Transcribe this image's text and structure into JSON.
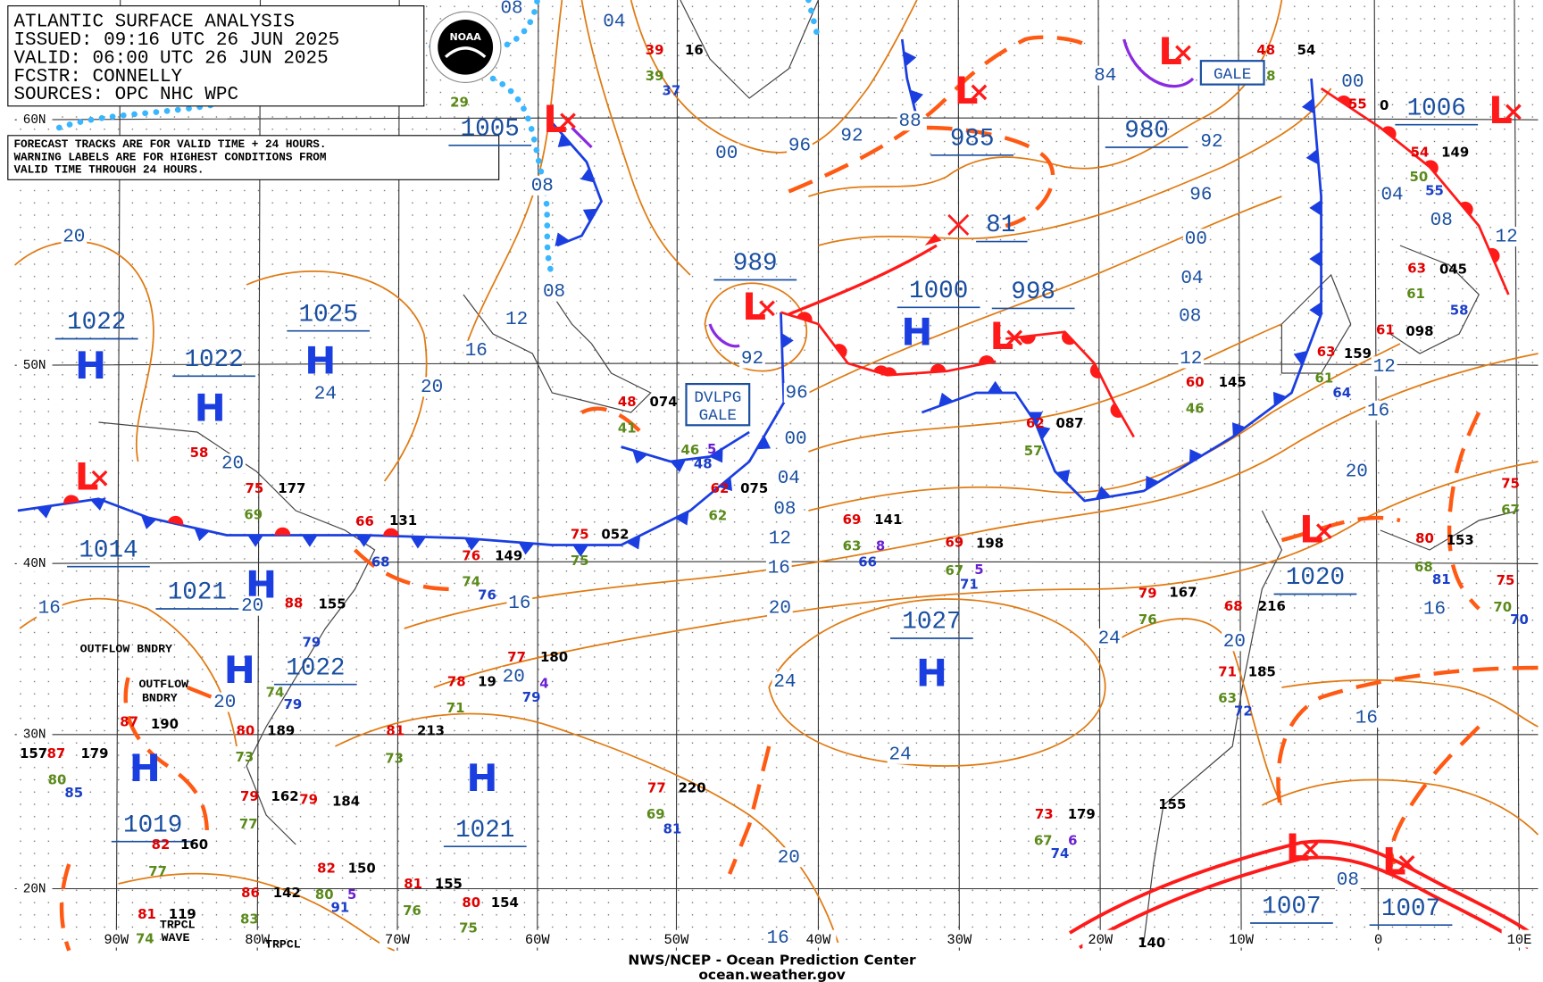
{
  "header": {
    "lines": [
      "ATLANTIC SURFACE ANALYSIS",
      "ISSUED: 09:16 UTC 26 JUN 2025",
      "VALID: 06:00 UTC 26 JUN 2025",
      "FCSTR: CONNELLY",
      "SOURCES: OPC NHC WPC"
    ],
    "logo": "NOAA"
  },
  "note": [
    "FORECAST TRACKS ARE FOR VALID TIME + 24 HOURS.",
    "WARNING LABELS ARE FOR HIGHEST CONDITIONS FROM",
    "VALID TIME THROUGH 24 HOURS."
  ],
  "latitude_labels": [
    "60N",
    "50N",
    "40N",
    "30N",
    "20N"
  ],
  "longitude_labels": [
    "90W",
    "80W",
    "70W",
    "60W",
    "50W",
    "40W",
    "30W",
    "20W",
    "10W",
    "0",
    "10E"
  ],
  "pressure_centers": [
    {
      "symbol": "H",
      "value": "1022"
    },
    {
      "symbol": "H",
      "value": "1022"
    },
    {
      "symbol": "H",
      "value": "1025"
    },
    {
      "symbol": "L",
      "value": "1014"
    },
    {
      "symbol": "H",
      "value": "1021"
    },
    {
      "symbol": "H",
      "value": "1022"
    },
    {
      "symbol": "H",
      "value": "1019"
    },
    {
      "symbol": "H",
      "value": "1021"
    },
    {
      "symbol": "H",
      "value": "1027"
    },
    {
      "symbol": "H",
      "value": "1000"
    },
    {
      "symbol": "L",
      "value": "998"
    },
    {
      "symbol": "L",
      "value": "989"
    },
    {
      "symbol": "L",
      "value": "985"
    },
    {
      "symbol": "L",
      "value": "980"
    },
    {
      "symbol": "L",
      "value": "1005"
    },
    {
      "symbol": "L",
      "value": "1006"
    },
    {
      "symbol": "L",
      "value": "1020"
    },
    {
      "symbol": "L",
      "value": "1007"
    },
    {
      "symbol": "L",
      "value": "1007"
    }
  ],
  "forecast_position": "81",
  "warnings": [
    [
      "GALE"
    ],
    [
      "DVLPG",
      "GALE"
    ]
  ],
  "isobar_labels": [
    "08",
    "04",
    "00",
    "96",
    "92",
    "88",
    "84",
    "92",
    "96",
    "00",
    "04",
    "08",
    "12",
    "16",
    "20",
    "16",
    "16",
    "08",
    "00",
    "04",
    "08",
    "12",
    "12",
    "08",
    "08",
    "12",
    "16",
    "20",
    "24",
    "20",
    "20",
    "16",
    "20",
    "20",
    "20",
    "16",
    "20",
    "24",
    "24",
    "24",
    "20",
    "20",
    "16",
    "16",
    "12",
    "08",
    "04",
    "00",
    "96",
    "92"
  ],
  "annotations": [
    "OUTFLOW BNDRY",
    "OUTFLOW",
    "BNDRY",
    "TRPCL",
    "WAVE",
    "TRPCL"
  ],
  "stations": [
    {
      "text": "39",
      "color": "#e00000"
    },
    {
      "text": "16",
      "color": "#000000"
    },
    {
      "text": "39",
      "color": "#5a8a1a"
    },
    {
      "text": "37",
      "color": "#1a3ec8"
    },
    {
      "text": "29",
      "color": "#5a8a1a"
    },
    {
      "text": "48",
      "color": "#e00000"
    },
    {
      "text": "54",
      "color": "#000000"
    },
    {
      "text": "8",
      "color": "#5a8a1a"
    },
    {
      "text": "55",
      "color": "#e00000"
    },
    {
      "text": "0",
      "color": "#000000"
    },
    {
      "text": "54",
      "color": "#e00000"
    },
    {
      "text": "149",
      "color": "#000000"
    },
    {
      "text": "50",
      "color": "#5a8a1a"
    },
    {
      "text": "55",
      "color": "#1a3ec8"
    },
    {
      "text": "63",
      "color": "#e00000"
    },
    {
      "text": "045",
      "color": "#000000"
    },
    {
      "text": "61",
      "color": "#5a8a1a"
    },
    {
      "text": "58",
      "color": "#1a3ec8"
    },
    {
      "text": "61",
      "color": "#e00000"
    },
    {
      "text": "098",
      "color": "#000000"
    },
    {
      "text": "63",
      "color": "#e00000"
    },
    {
      "text": "159",
      "color": "#000000"
    },
    {
      "text": "61",
      "color": "#5a8a1a"
    },
    {
      "text": "64",
      "color": "#1a3ec8"
    },
    {
      "text": "60",
      "color": "#e00000"
    },
    {
      "text": "145",
      "color": "#000000"
    },
    {
      "text": "46",
      "color": "#5a8a1a"
    },
    {
      "text": "62",
      "color": "#e00000"
    },
    {
      "text": "087",
      "color": "#000000"
    },
    {
      "text": "57",
      "color": "#5a8a1a"
    },
    {
      "text": "48",
      "color": "#e00000"
    },
    {
      "text": "074",
      "color": "#000000"
    },
    {
      "text": "41",
      "color": "#5a8a1a"
    },
    {
      "text": "46",
      "color": "#5a8a1a"
    },
    {
      "text": "5",
      "color": "#6a1fd0"
    },
    {
      "text": "48",
      "color": "#1a3ec8"
    },
    {
      "text": "62",
      "color": "#e00000"
    },
    {
      "text": "075",
      "color": "#000000"
    },
    {
      "text": "62",
      "color": "#5a8a1a"
    },
    {
      "text": "69",
      "color": "#e00000"
    },
    {
      "text": "141",
      "color": "#000000"
    },
    {
      "text": "63",
      "color": "#5a8a1a"
    },
    {
      "text": "66",
      "color": "#1a3ec8"
    },
    {
      "text": "8",
      "color": "#6a1fd0"
    },
    {
      "text": "69",
      "color": "#e00000"
    },
    {
      "text": "198",
      "color": "#000000"
    },
    {
      "text": "67",
      "color": "#5a8a1a"
    },
    {
      "text": "71",
      "color": "#1a3ec8"
    },
    {
      "text": "5",
      "color": "#6a1fd0"
    },
    {
      "text": "79",
      "color": "#e00000"
    },
    {
      "text": "167",
      "color": "#000000"
    },
    {
      "text": "76",
      "color": "#5a8a1a"
    },
    {
      "text": "68",
      "color": "#e00000"
    },
    {
      "text": "216",
      "color": "#000000"
    },
    {
      "text": "71",
      "color": "#e00000"
    },
    {
      "text": "185",
      "color": "#000000"
    },
    {
      "text": "63",
      "color": "#5a8a1a"
    },
    {
      "text": "72",
      "color": "#1a3ec8"
    },
    {
      "text": "80",
      "color": "#e00000"
    },
    {
      "text": "153",
      "color": "#000000"
    },
    {
      "text": "68",
      "color": "#5a8a1a"
    },
    {
      "text": "81",
      "color": "#1a3ec8"
    },
    {
      "text": "75",
      "color": "#e00000"
    },
    {
      "text": "67",
      "color": "#5a8a1a"
    },
    {
      "text": "75",
      "color": "#e00000"
    },
    {
      "text": "70",
      "color": "#5a8a1a"
    },
    {
      "text": "70",
      "color": "#1a3ec8"
    },
    {
      "text": "75",
      "color": "#e00000"
    },
    {
      "text": "052",
      "color": "#000000"
    },
    {
      "text": "75",
      "color": "#5a8a1a"
    },
    {
      "text": "76",
      "color": "#e00000"
    },
    {
      "text": "149",
      "color": "#000000"
    },
    {
      "text": "74",
      "color": "#5a8a1a"
    },
    {
      "text": "76",
      "color": "#1a3ec8"
    },
    {
      "text": "66",
      "color": "#e00000"
    },
    {
      "text": "131",
      "color": "#000000"
    },
    {
      "text": "68",
      "color": "#1a3ec8"
    },
    {
      "text": "75",
      "color": "#e00000"
    },
    {
      "text": "177",
      "color": "#000000"
    },
    {
      "text": "69",
      "color": "#5a8a1a"
    },
    {
      "text": "58",
      "color": "#e00000"
    },
    {
      "text": "88",
      "color": "#e00000"
    },
    {
      "text": "155",
      "color": "#000000"
    },
    {
      "text": "79",
      "color": "#1a3ec8"
    },
    {
      "text": "77",
      "color": "#e00000"
    },
    {
      "text": "180",
      "color": "#000000"
    },
    {
      "text": "79",
      "color": "#1a3ec8"
    },
    {
      "text": "4",
      "color": "#6a1fd0"
    },
    {
      "text": "78",
      "color": "#e00000"
    },
    {
      "text": "19",
      "color": "#000000"
    },
    {
      "text": "71",
      "color": "#5a8a1a"
    },
    {
      "text": "81",
      "color": "#e00000"
    },
    {
      "text": "213",
      "color": "#000000"
    },
    {
      "text": "73",
      "color": "#5a8a1a"
    },
    {
      "text": "87",
      "color": "#e00000"
    },
    {
      "text": "190",
      "color": "#000000"
    },
    {
      "text": "87",
      "color": "#e00000"
    },
    {
      "text": "179",
      "color": "#000000"
    },
    {
      "text": "157",
      "color": "#000000"
    },
    {
      "text": "80",
      "color": "#5a8a1a"
    },
    {
      "text": "85",
      "color": "#1a3ec8"
    },
    {
      "text": "80",
      "color": "#e00000"
    },
    {
      "text": "189",
      "color": "#000000"
    },
    {
      "text": "73",
      "color": "#5a8a1a"
    },
    {
      "text": "74",
      "color": "#5a8a1a"
    },
    {
      "text": "79",
      "color": "#1a3ec8"
    },
    {
      "text": "79",
      "color": "#e00000"
    },
    {
      "text": "162",
      "color": "#000000"
    },
    {
      "text": "79",
      "color": "#e00000"
    },
    {
      "text": "184",
      "color": "#000000"
    },
    {
      "text": "77",
      "color": "#5a8a1a"
    },
    {
      "text": "77",
      "color": "#e00000"
    },
    {
      "text": "220",
      "color": "#000000"
    },
    {
      "text": "69",
      "color": "#5a8a1a"
    },
    {
      "text": "81",
      "color": "#1a3ec8"
    },
    {
      "text": "73",
      "color": "#e00000"
    },
    {
      "text": "179",
      "color": "#000000"
    },
    {
      "text": "67",
      "color": "#5a8a1a"
    },
    {
      "text": "74",
      "color": "#1a3ec8"
    },
    {
      "text": "6",
      "color": "#6a1fd0"
    },
    {
      "text": "155",
      "color": "#000000"
    },
    {
      "text": "82",
      "color": "#e00000"
    },
    {
      "text": "160",
      "color": "#000000"
    },
    {
      "text": "77",
      "color": "#5a8a1a"
    },
    {
      "text": "82",
      "color": "#e00000"
    },
    {
      "text": "150",
      "color": "#000000"
    },
    {
      "text": "80",
      "color": "#5a8a1a"
    },
    {
      "text": "91",
      "color": "#1a3ec8"
    },
    {
      "text": "5",
      "color": "#6a1fd0"
    },
    {
      "text": "86",
      "color": "#e00000"
    },
    {
      "text": "142",
      "color": "#000000"
    },
    {
      "text": "83",
      "color": "#5a8a1a"
    },
    {
      "text": "81",
      "color": "#e00000"
    },
    {
      "text": "155",
      "color": "#000000"
    },
    {
      "text": "76",
      "color": "#5a8a1a"
    },
    {
      "text": "80",
      "color": "#e00000"
    },
    {
      "text": "154",
      "color": "#000000"
    },
    {
      "text": "75",
      "color": "#5a8a1a"
    },
    {
      "text": "81",
      "color": "#e00000"
    },
    {
      "text": "119",
      "color": "#000000"
    },
    {
      "text": "74",
      "color": "#5a8a1a"
    },
    {
      "text": "140",
      "color": "#000000"
    }
  ],
  "footer": [
    "NWS/NCEP - Ocean Prediction Center",
    "ocean.weather.gov"
  ]
}
